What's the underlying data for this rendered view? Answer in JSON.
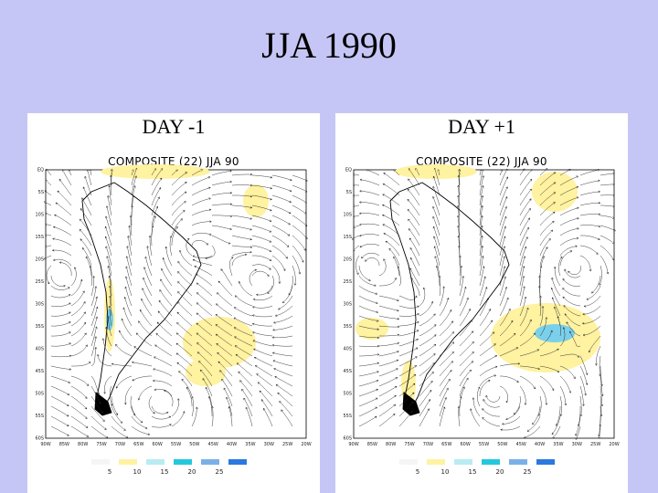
{
  "slide": {
    "title": "JJA 1990"
  },
  "panels": [
    {
      "heading": "DAY -1",
      "map_title": "COMPOSITE (22) JJA 90"
    },
    {
      "heading": "DAY +1",
      "map_title": "COMPOSITE (22) JJA 90"
    }
  ],
  "lat_labels": [
    "EQ",
    "5S",
    "10S",
    "15S",
    "20S",
    "25S",
    "30S",
    "35S",
    "40S",
    "45S",
    "50S",
    "55S",
    "60S"
  ],
  "lon_labels": [
    "90W",
    "85W",
    "80W",
    "75W",
    "70W",
    "65W",
    "60W",
    "55W",
    "50W",
    "45W",
    "40W",
    "35W",
    "30W",
    "25W",
    "20W"
  ],
  "legend": {
    "labels": [
      "5",
      "10",
      "15",
      "20",
      "25"
    ],
    "colors": [
      "#f5f5f5",
      "#fff2a0",
      "#b8ecf2",
      "#24c8dc",
      "#7ab0e8",
      "#2a78e0"
    ]
  },
  "colors": {
    "background": "#c6c6f6",
    "land_outline": "#000000",
    "streamline": "#222222"
  }
}
